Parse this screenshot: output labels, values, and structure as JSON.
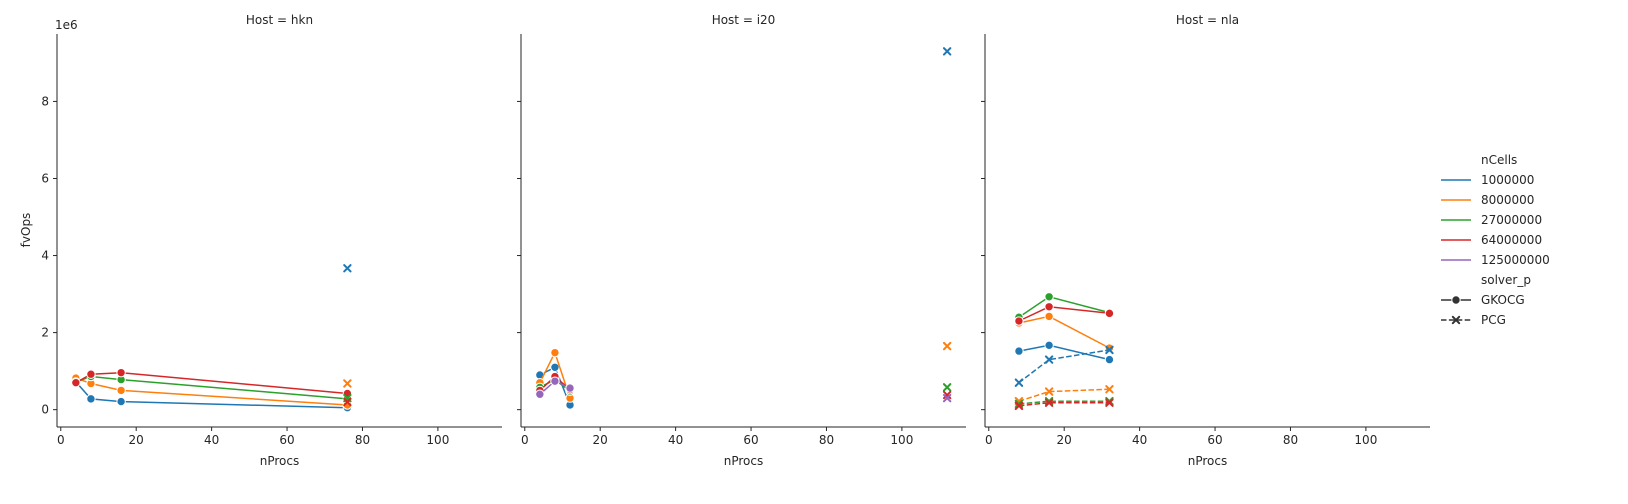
{
  "chart_data": {
    "type": "line",
    "facet_titles": [
      "Host = hkn",
      "Host = i20",
      "Host = nla"
    ],
    "xlabel": "nProcs",
    "ylabel": "fvOps",
    "y_offset_label": "1e6",
    "xlim": [
      -1,
      117
    ],
    "ylim": [
      -0.45,
      9.75
    ],
    "x_ticks": [
      0,
      20,
      40,
      60,
      80,
      100
    ],
    "y_ticks": [
      0,
      2,
      4,
      6,
      8
    ],
    "legend": {
      "placement": "right",
      "hue_title": "nCells",
      "hue_entries": [
        {
          "label": "1000000",
          "color": "#1f77b4"
        },
        {
          "label": "8000000",
          "color": "#ff7f0e"
        },
        {
          "label": "27000000",
          "color": "#2ca02c"
        },
        {
          "label": "64000000",
          "color": "#d62728"
        },
        {
          "label": "125000000",
          "color": "#9467bd"
        }
      ],
      "style_title": "solver_p",
      "style_entries": [
        {
          "label": "GKOCG",
          "dash": "solid",
          "marker": "circle"
        },
        {
          "label": "PCG",
          "dash": "dashed",
          "marker": "x"
        }
      ]
    },
    "facets": [
      {
        "host": "hkn",
        "series": [
          {
            "nCells": "1000000",
            "solver": "GKOCG",
            "x": [
              4,
              8,
              16,
              76
            ],
            "y": [
              0.72,
              0.28,
              0.21,
              0.05
            ]
          },
          {
            "nCells": "8000000",
            "solver": "GKOCG",
            "x": [
              4,
              8,
              16,
              76
            ],
            "y": [
              0.82,
              0.68,
              0.5,
              0.12
            ]
          },
          {
            "nCells": "27000000",
            "solver": "GKOCG",
            "x": [
              4,
              8,
              16,
              76
            ],
            "y": [
              0.72,
              0.86,
              0.78,
              0.28
            ]
          },
          {
            "nCells": "64000000",
            "solver": "GKOCG",
            "x": [
              4,
              8,
              16,
              76
            ],
            "y": [
              0.7,
              0.92,
              0.96,
              0.42
            ]
          },
          {
            "nCells": "1000000",
            "solver": "PCG",
            "x": [
              76
            ],
            "y": [
              3.67
            ]
          },
          {
            "nCells": "8000000",
            "solver": "PCG",
            "x": [
              76
            ],
            "y": [
              0.68
            ]
          },
          {
            "nCells": "27000000",
            "solver": "PCG",
            "x": [
              76
            ],
            "y": [
              0.3
            ]
          },
          {
            "nCells": "64000000",
            "solver": "PCG",
            "x": [
              76
            ],
            "y": [
              0.2
            ]
          }
        ]
      },
      {
        "host": "i20",
        "series": [
          {
            "nCells": "1000000",
            "solver": "GKOCG",
            "x": [
              4,
              8,
              12
            ],
            "y": [
              0.9,
              1.1,
              0.12
            ]
          },
          {
            "nCells": "8000000",
            "solver": "GKOCG",
            "x": [
              4,
              8,
              12
            ],
            "y": [
              0.7,
              1.48,
              0.3
            ]
          },
          {
            "nCells": "27000000",
            "solver": "GKOCG",
            "x": [
              4,
              8,
              12
            ],
            "y": [
              0.58,
              0.78,
              0.48
            ]
          },
          {
            "nCells": "64000000",
            "solver": "GKOCG",
            "x": [
              4,
              8,
              12
            ],
            "y": [
              0.5,
              0.86,
              0.52
            ]
          },
          {
            "nCells": "125000000",
            "solver": "GKOCG",
            "x": [
              4,
              8,
              12
            ],
            "y": [
              0.4,
              0.74,
              0.56
            ]
          },
          {
            "nCells": "1000000",
            "solver": "PCG",
            "x": [
              112
            ],
            "y": [
              9.3
            ]
          },
          {
            "nCells": "8000000",
            "solver": "PCG",
            "x": [
              112
            ],
            "y": [
              1.65
            ]
          },
          {
            "nCells": "27000000",
            "solver": "PCG",
            "x": [
              112
            ],
            "y": [
              0.58
            ]
          },
          {
            "nCells": "64000000",
            "solver": "PCG",
            "x": [
              112
            ],
            "y": [
              0.38
            ]
          },
          {
            "nCells": "125000000",
            "solver": "PCG",
            "x": [
              112
            ],
            "y": [
              0.3
            ]
          }
        ]
      },
      {
        "host": "nla",
        "series": [
          {
            "nCells": "1000000",
            "solver": "GKOCG",
            "x": [
              8,
              16,
              32
            ],
            "y": [
              1.52,
              1.67,
              1.3
            ]
          },
          {
            "nCells": "8000000",
            "solver": "GKOCG",
            "x": [
              8,
              16,
              32
            ],
            "y": [
              2.25,
              2.42,
              1.6
            ]
          },
          {
            "nCells": "27000000",
            "solver": "GKOCG",
            "x": [
              8,
              16,
              32
            ],
            "y": [
              2.4,
              2.93,
              2.52
            ]
          },
          {
            "nCells": "64000000",
            "solver": "GKOCG",
            "x": [
              8,
              16,
              32
            ],
            "y": [
              2.3,
              2.67,
              2.5
            ]
          },
          {
            "nCells": "1000000",
            "solver": "PCG",
            "x": [
              8,
              16,
              32
            ],
            "y": [
              0.7,
              1.3,
              1.55
            ]
          },
          {
            "nCells": "8000000",
            "solver": "PCG",
            "x": [
              8,
              16,
              32
            ],
            "y": [
              0.22,
              0.47,
              0.53
            ]
          },
          {
            "nCells": "27000000",
            "solver": "PCG",
            "x": [
              8,
              16,
              32
            ],
            "y": [
              0.15,
              0.22,
              0.22
            ]
          },
          {
            "nCells": "64000000",
            "solver": "PCG",
            "x": [
              8,
              16,
              32
            ],
            "y": [
              0.1,
              0.18,
              0.18
            ]
          }
        ]
      }
    ]
  }
}
